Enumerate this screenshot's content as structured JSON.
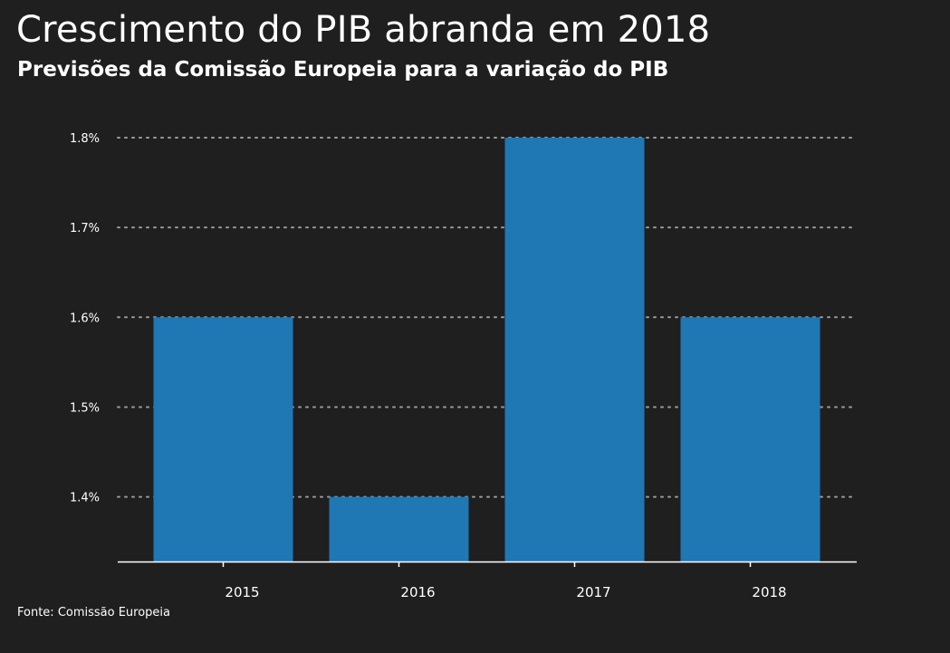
{
  "header": {
    "title": "Crescimento do PIB abranda em 2018",
    "subtitle": "Previsões da Comissão Europeia para a variação do PIB"
  },
  "footer": {
    "source": "Fonte: Comissão Europeia"
  },
  "chart_data": {
    "type": "bar",
    "categories": [
      "2015",
      "2016",
      "2017",
      "2018"
    ],
    "values": [
      1.6,
      1.4,
      1.8,
      1.6
    ],
    "yticks": [
      "1.4%",
      "1.5%",
      "1.6%",
      "1.7%",
      "1.8%"
    ],
    "ytick_values": [
      1.4,
      1.5,
      1.6,
      1.7,
      1.8
    ],
    "ylim": [
      1.328,
      1.8
    ],
    "grid": true,
    "colors": {
      "bar": "#1f77b4",
      "grid": "#9a9a9a",
      "axis": "#ffffff",
      "background": "#1f1f1f"
    }
  }
}
